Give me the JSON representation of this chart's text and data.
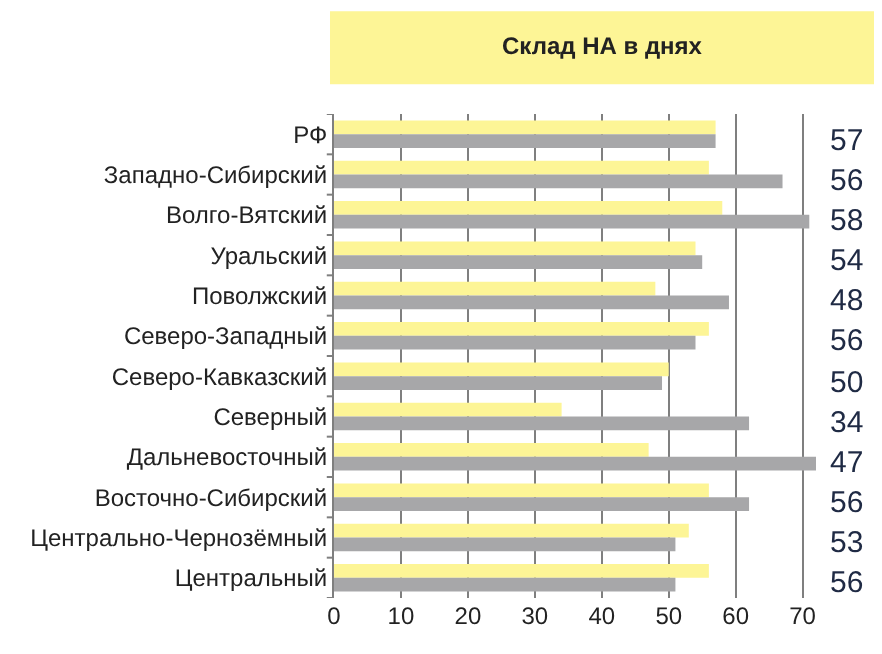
{
  "chart_data": {
    "type": "bar",
    "orientation": "horizontal",
    "title": "Склад НА в днях",
    "categories": [
      "РФ",
      "Западно-Сибирский",
      "Волго-Вятский",
      "Уральский",
      "Поволжский",
      "Северо-Западный",
      "Северо-Кавказский",
      "Северный",
      "Дальневосточный",
      "Восточно-Сибирский",
      "Центрально-Чернозёмный",
      "Центральный"
    ],
    "series": [
      {
        "color": "#fdf596",
        "values": [
          57,
          56,
          58,
          54,
          48,
          56,
          50,
          34,
          47,
          56,
          53,
          56
        ],
        "value_labels": [
          "57",
          "56",
          "58",
          "54",
          "48",
          "56",
          "50",
          "34",
          "47",
          "56",
          "53",
          "56"
        ]
      },
      {
        "color": "#a7a7a9",
        "values": [
          57,
          67,
          71,
          55,
          59,
          54,
          49,
          62,
          72,
          62,
          51,
          51
        ]
      }
    ],
    "xlim": [
      0,
      72
    ],
    "xticks": [
      0,
      10,
      20,
      30,
      40,
      50,
      60,
      70
    ],
    "grid": "x"
  }
}
